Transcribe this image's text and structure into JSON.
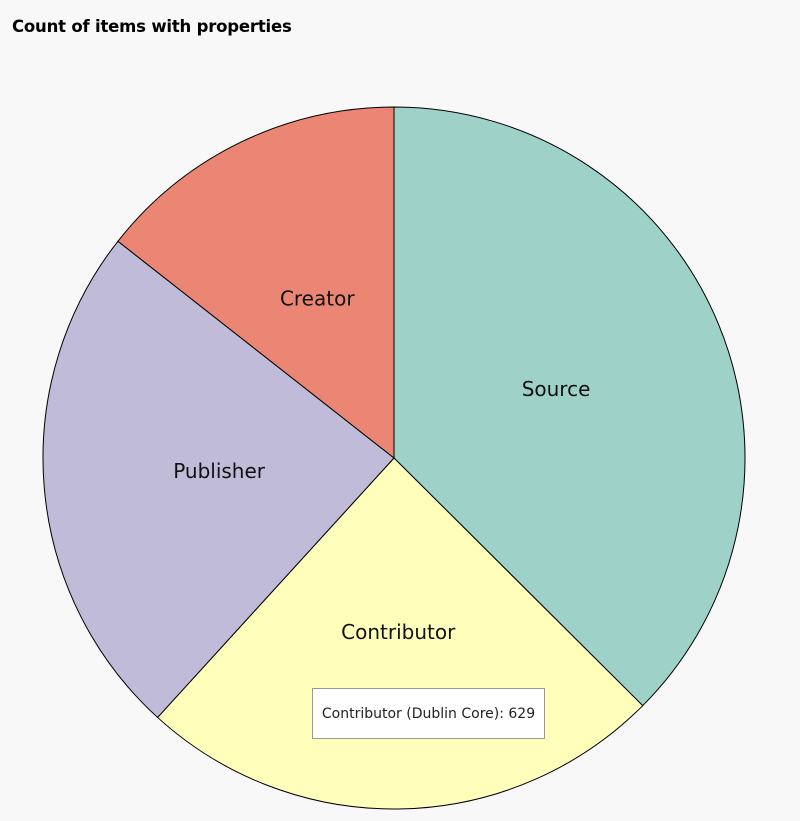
{
  "chart_data": {
    "type": "pie",
    "title": "Count of items with properties",
    "slices": [
      {
        "label": "Source",
        "value": 970,
        "color": "#9ed1c7"
      },
      {
        "label": "Contributor",
        "value": 629,
        "color": "#ffffbb"
      },
      {
        "label": "Publisher",
        "value": 617,
        "color": "#bfbbd9"
      },
      {
        "label": "Creator",
        "value": 373,
        "color": "#eb8674"
      }
    ],
    "tooltip": {
      "label": "Contributor (Dublin Core)",
      "value": 629
    }
  }
}
